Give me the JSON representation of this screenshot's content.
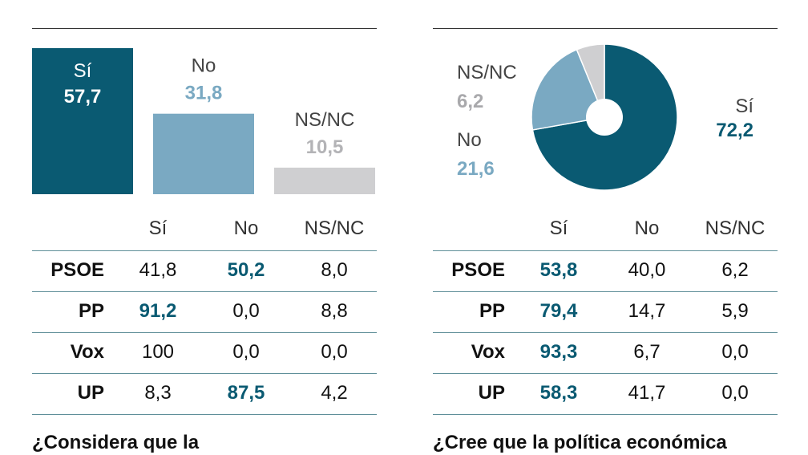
{
  "colors": {
    "si": "#0a5a72",
    "no": "#7aa9c2",
    "nsnc": "#cfcfd1",
    "highlight": "#0a5a72"
  },
  "left": {
    "question": "¿Considera que la",
    "table": {
      "headers": [
        "Sí",
        "No",
        "NS/NC"
      ],
      "rows": [
        {
          "party": "PSOE",
          "values": [
            "41,8",
            "50,2",
            "8,0"
          ],
          "highlight": 1
        },
        {
          "party": "PP",
          "values": [
            "91,2",
            "0,0",
            "8,8"
          ],
          "highlight": 0
        },
        {
          "party": "Vox",
          "values": [
            "100",
            "0,0",
            "0,0"
          ],
          "highlight": -1
        },
        {
          "party": "UP",
          "values": [
            "8,3",
            "87,5",
            "4,2"
          ],
          "highlight": 1
        }
      ]
    }
  },
  "right": {
    "question": "¿Cree que la política económica",
    "table": {
      "headers": [
        "Sí",
        "No",
        "NS/NC"
      ],
      "rows": [
        {
          "party": "PSOE",
          "values": [
            "53,8",
            "40,0",
            "6,2"
          ],
          "highlight": 0
        },
        {
          "party": "PP",
          "values": [
            "79,4",
            "14,7",
            "5,9"
          ],
          "highlight": 0
        },
        {
          "party": "Vox",
          "values": [
            "93,3",
            "6,7",
            "0,0"
          ],
          "highlight": 0
        },
        {
          "party": "UP",
          "values": [
            "58,3",
            "41,7",
            "0,0"
          ],
          "highlight": 0
        }
      ]
    }
  },
  "chart_data": [
    {
      "type": "bar",
      "categories": [
        "Sí",
        "No",
        "NS/NC"
      ],
      "values": [
        57.7,
        31.8,
        10.5
      ],
      "labels": [
        "57,7",
        "31,8",
        "10,5"
      ],
      "ylim": [
        0,
        57.7
      ]
    },
    {
      "type": "pie",
      "categories": [
        "Sí",
        "No",
        "NS/NC"
      ],
      "values": [
        72.2,
        21.6,
        6.2
      ],
      "labels": [
        "72,2",
        "21,6",
        "6,2"
      ]
    }
  ]
}
